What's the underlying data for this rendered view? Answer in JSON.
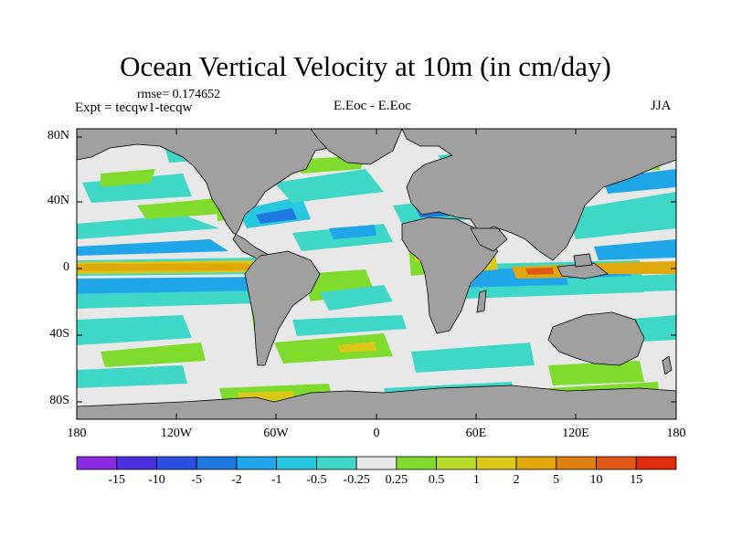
{
  "title": "Ocean Vertical Velocity at 10m (in cm/day)",
  "rmse_label": "rmse= 0.174652",
  "experiment_label": "Expt = tecqw1-tecqw",
  "center_label": "E.Eoc - E.Eoc",
  "season_label": "JJA",
  "lat_ticks": [
    "80N",
    "40N",
    "0",
    "40S",
    "80S"
  ],
  "lon_ticks": [
    "180",
    "120W",
    "60W",
    "0",
    "60E",
    "120E",
    "180"
  ],
  "colorbar": {
    "labels": [
      "-15",
      "-10",
      "-5",
      "-2",
      "-1",
      "-0.5",
      "-0.25",
      "0.25",
      "0.5",
      "1",
      "2",
      "5",
      "10",
      "15"
    ],
    "colors": [
      "#8a2be2",
      "#4b2fe0",
      "#2b4fe0",
      "#1f78e0",
      "#1ea6e8",
      "#28c8e0",
      "#3fd8c8",
      "#e8e8e8",
      "#7fdc2c",
      "#b8dc2c",
      "#dcc818",
      "#e0a80c",
      "#e08010",
      "#e05818",
      "#e02c0c"
    ]
  },
  "map_colors": {
    "land": "#a0a0a0",
    "ocean_neutral": "#e8e8e8",
    "coast": "#000000"
  }
}
